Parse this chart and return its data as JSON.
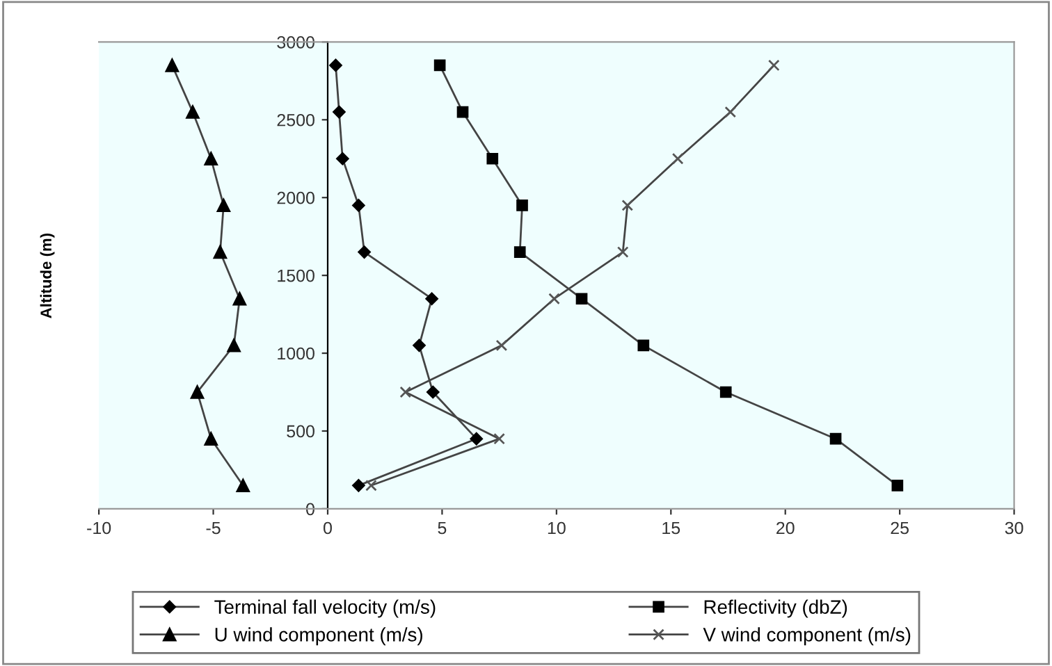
{
  "chart_data": {
    "type": "line",
    "ylabel": "Altitude (m)",
    "xlim": [
      -10,
      30
    ],
    "xticks": [
      -10,
      -5,
      0,
      5,
      10,
      15,
      20,
      25,
      30
    ],
    "ylim": [
      0,
      3000
    ],
    "yticks": [
      0,
      500,
      1000,
      1500,
      2000,
      2500,
      3000
    ],
    "grid": false,
    "legend": "bottom",
    "series": [
      {
        "name": "Terminal fall velocity (m/s)",
        "color": "#000000",
        "marker": "diamond",
        "x": [
          0.35,
          0.5,
          0.65,
          1.35,
          1.6,
          4.55,
          4.0,
          4.6,
          6.5,
          1.35
        ],
        "values": [
          2850,
          2550,
          2250,
          1950,
          1650,
          1350,
          1050,
          750,
          450,
          150
        ]
      },
      {
        "name": "Reflectivity (dbZ)",
        "color": "#000000",
        "marker": "square",
        "x": [
          4.9,
          5.9,
          7.2,
          8.5,
          8.4,
          11.1,
          13.8,
          17.4,
          22.2,
          24.9
        ],
        "values": [
          2850,
          2550,
          2250,
          1950,
          1650,
          1350,
          1050,
          750,
          450,
          150
        ]
      },
      {
        "name": "U wind component (m/s)",
        "color": "#000000",
        "marker": "triangle",
        "x": [
          -6.8,
          -5.9,
          -5.1,
          -4.55,
          -4.7,
          -3.85,
          -4.1,
          -5.7,
          -5.1,
          -3.7
        ],
        "values": [
          2850,
          2550,
          2250,
          1950,
          1650,
          1350,
          1050,
          750,
          450,
          150
        ]
      },
      {
        "name": "V wind component (m/s)",
        "color": "#555555",
        "marker": "cross",
        "x": [
          19.5,
          17.6,
          15.3,
          13.1,
          12.9,
          9.9,
          7.6,
          3.4,
          7.5,
          1.9
        ],
        "values": [
          2850,
          2550,
          2250,
          1950,
          1650,
          1350,
          1050,
          750,
          450,
          150
        ]
      }
    ]
  }
}
